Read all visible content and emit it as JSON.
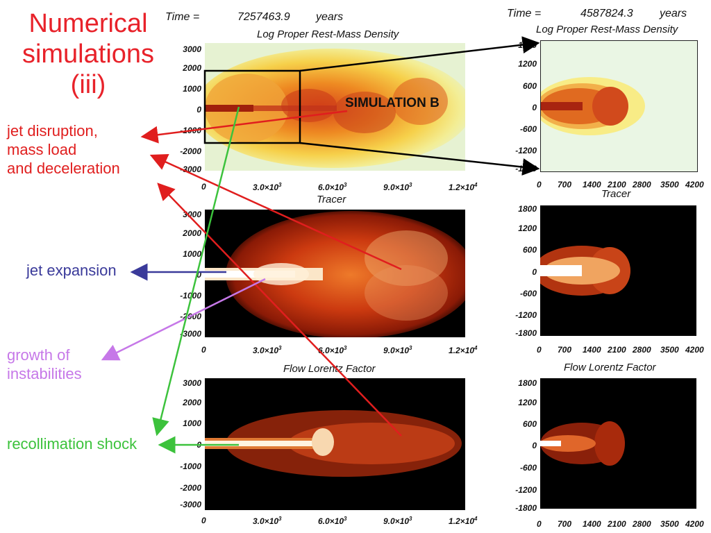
{
  "slide_title": "Numerical\nsimulations\n(iii)",
  "labels": {
    "jet_disruption": "jet disruption,\nmass load\nand deceleration",
    "jet_expansion": "jet expansion",
    "instabilities": "growth of\ninstabilities",
    "recollimation": "recollimation shock",
    "simulation_b": "SIMULATION B"
  },
  "left_time": {
    "label": "Time =",
    "value": "7257463.9",
    "unit": "years"
  },
  "right_time": {
    "label": "Time =",
    "value": "4587824.3",
    "unit": "years"
  },
  "panel_titles": {
    "density": "Log Proper Rest-Mass Density",
    "tracer": "Tracer",
    "lorentz": "Flow Lorentz Factor"
  },
  "left_axes": {
    "y_ticks": [
      "3000",
      "2000",
      "1000",
      "0",
      "-1000",
      "-2000",
      "-3000"
    ],
    "x_ticks": [
      "0",
      "3.0×10",
      "6.0×10",
      "9.0×10",
      "1.2×10"
    ],
    "x_exps": [
      "",
      "3",
      "3",
      "3",
      "4"
    ]
  },
  "right_axes": {
    "y_ticks": [
      "1800",
      "1200",
      "600",
      "0",
      "-600",
      "-1200",
      "-1800"
    ],
    "x_ticks": [
      "0",
      "700",
      "1400",
      "2100",
      "2800",
      "3500",
      "4200"
    ]
  },
  "colors": {
    "title": "#e8222a",
    "disruption_arrow": "#e01e1e",
    "expansion_arrow": "#3a3a9a",
    "instability_arrow": "#c678e8",
    "recollimation_arrow": "#3cc23c",
    "zoom_box": "#000000"
  }
}
